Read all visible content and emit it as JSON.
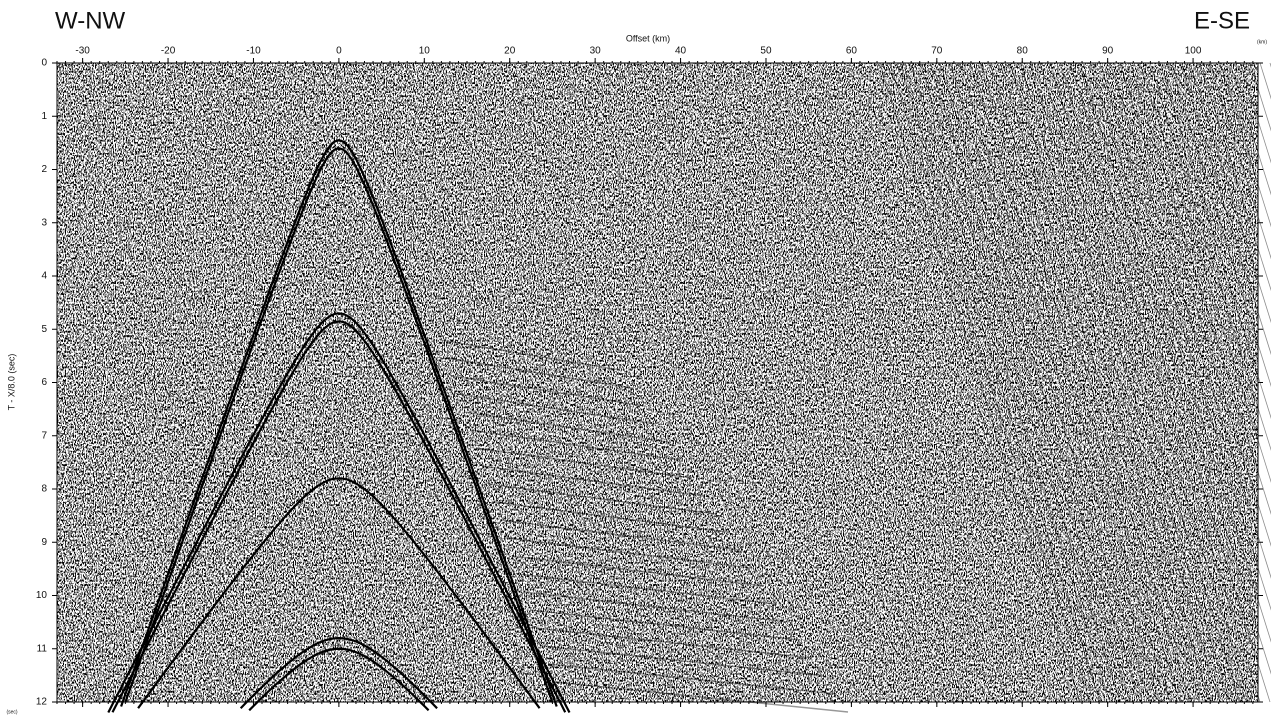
{
  "chart_data": {
    "type": "seismic",
    "annotations": [
      "W-NW",
      "E-SE"
    ],
    "xlabel": "Offset (km)",
    "x_unit": "(km)",
    "ylabel": "T - X/8.0 (sec)",
    "y_unit": "(sec)",
    "xlim": [
      -33,
      107.6
    ],
    "xticks": [
      -30,
      -20,
      -10,
      0,
      10,
      20,
      30,
      40,
      50,
      60,
      70,
      80,
      90,
      100
    ],
    "ylim": [
      0,
      12
    ],
    "yticks": [
      0,
      1,
      2,
      3,
      4,
      5,
      6,
      7,
      8,
      9,
      10,
      11,
      12
    ],
    "y_inverted": true,
    "xaxis_position": "top"
  }
}
